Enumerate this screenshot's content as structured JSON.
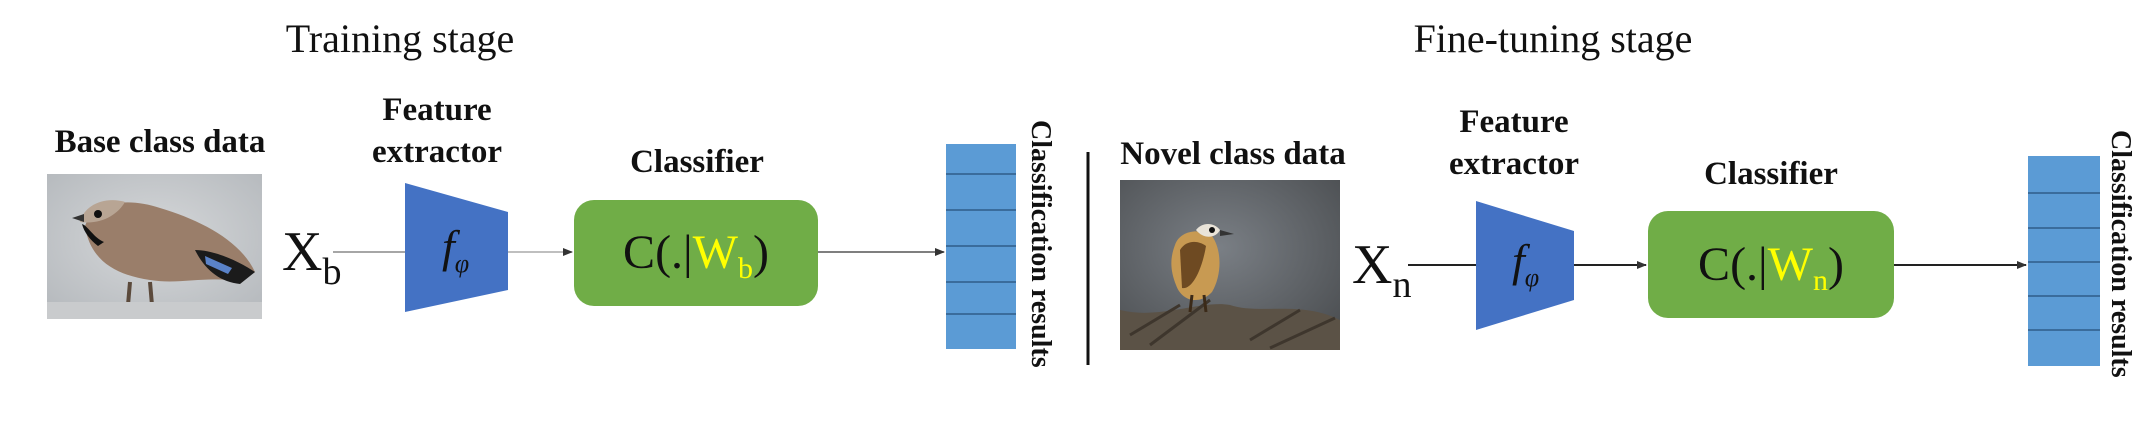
{
  "training": {
    "stage_title": "Training stage",
    "data_label": "Base class data",
    "input_var": "X",
    "input_sub": "b",
    "feature_label_line1": "Feature",
    "feature_label_line2": "extractor",
    "func_symbol": "f",
    "func_sub": "φ",
    "classifier_label": "Classifier",
    "classifier_prefix": "C(.|",
    "classifier_weight": "W",
    "classifier_weight_sub": "b",
    "classifier_suffix": ")",
    "results_label": "Classification results",
    "image_subject": "bird-photo-jay"
  },
  "finetuning": {
    "stage_title": "Fine-tuning stage",
    "data_label": "Novel class data",
    "input_var": "X",
    "input_sub": "n",
    "feature_label_line1": "Feature",
    "feature_label_line2": "extractor",
    "func_symbol": "f",
    "func_sub": "φ",
    "classifier_label": "Classifier",
    "classifier_prefix": "C(.|",
    "classifier_weight": "W",
    "classifier_weight_sub": "n",
    "classifier_suffix": ")",
    "results_label": "Classification results",
    "image_subject": "bird-photo-wryneck"
  },
  "colors": {
    "extractor_fill": "#4472c4",
    "classifier_fill": "#70ad47",
    "weight_text": "#ffff00",
    "results_fill": "#5b9bd5",
    "results_line": "#2f5c8a",
    "arrow": "#333333"
  }
}
